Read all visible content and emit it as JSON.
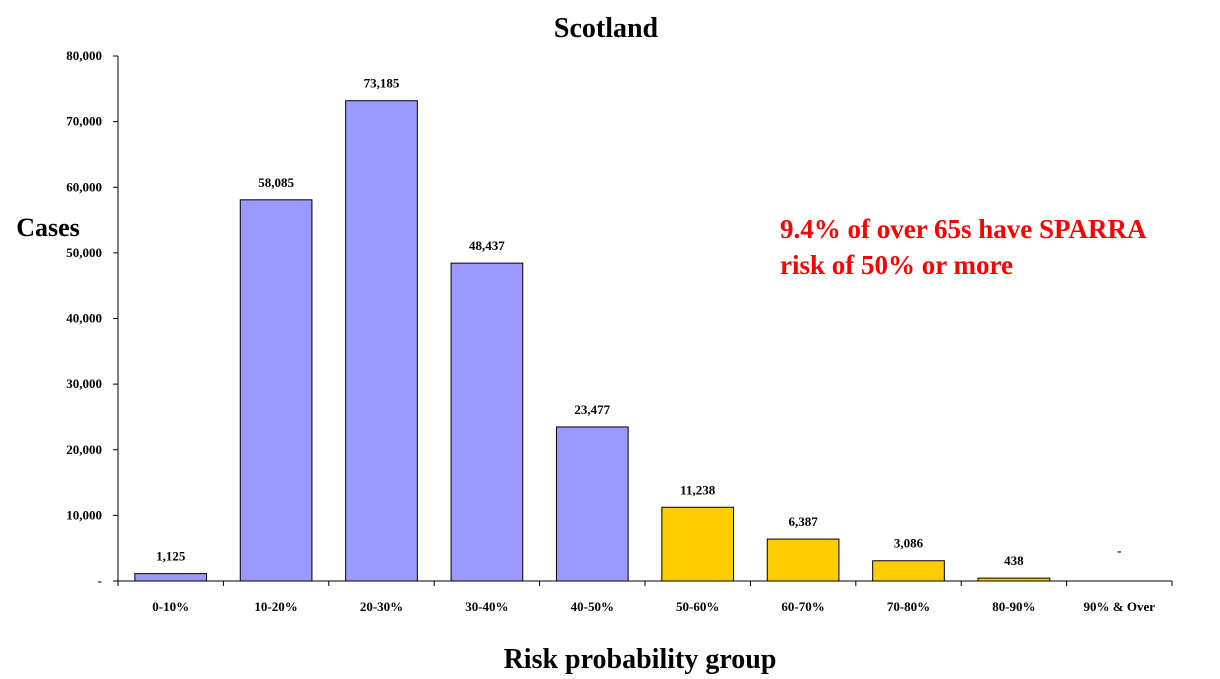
{
  "chart_data": {
    "type": "bar",
    "title": "Scotland",
    "xlabel": "Risk probability group",
    "ylabel": "Cases",
    "categories": [
      "0-10%",
      "10-20%",
      "20-30%",
      "30-40%",
      "40-50%",
      "50-60%",
      "60-70%",
      "70-80%",
      "80-90%",
      "90% & Over"
    ],
    "values": [
      1125,
      58085,
      73185,
      48437,
      23477,
      11238,
      6387,
      3086,
      438,
      0
    ],
    "data_labels": [
      "1,125",
      "58,085",
      "73,185",
      "48,437",
      "23,477",
      "11,238",
      "6,387",
      "3,086",
      "438",
      "-"
    ],
    "ylim": [
      0,
      80000
    ],
    "yticks": [
      0,
      10000,
      20000,
      30000,
      40000,
      50000,
      60000,
      70000,
      80000
    ],
    "ytick_labels": [
      "-",
      "10,000",
      "20,000",
      "30,000",
      "40,000",
      "50,000",
      "60,000",
      "70,000",
      "80,000"
    ],
    "grid": false,
    "annotation_lines": [
      "9.4% of over 65s have SPARRA",
      "risk of 50% or more"
    ],
    "colors": {
      "low_risk_bar": "#9999ff",
      "high_risk_bar": "#ffcc00",
      "annotation": "#ff0000",
      "axis": "#000000"
    },
    "high_risk_from_index": 5
  }
}
